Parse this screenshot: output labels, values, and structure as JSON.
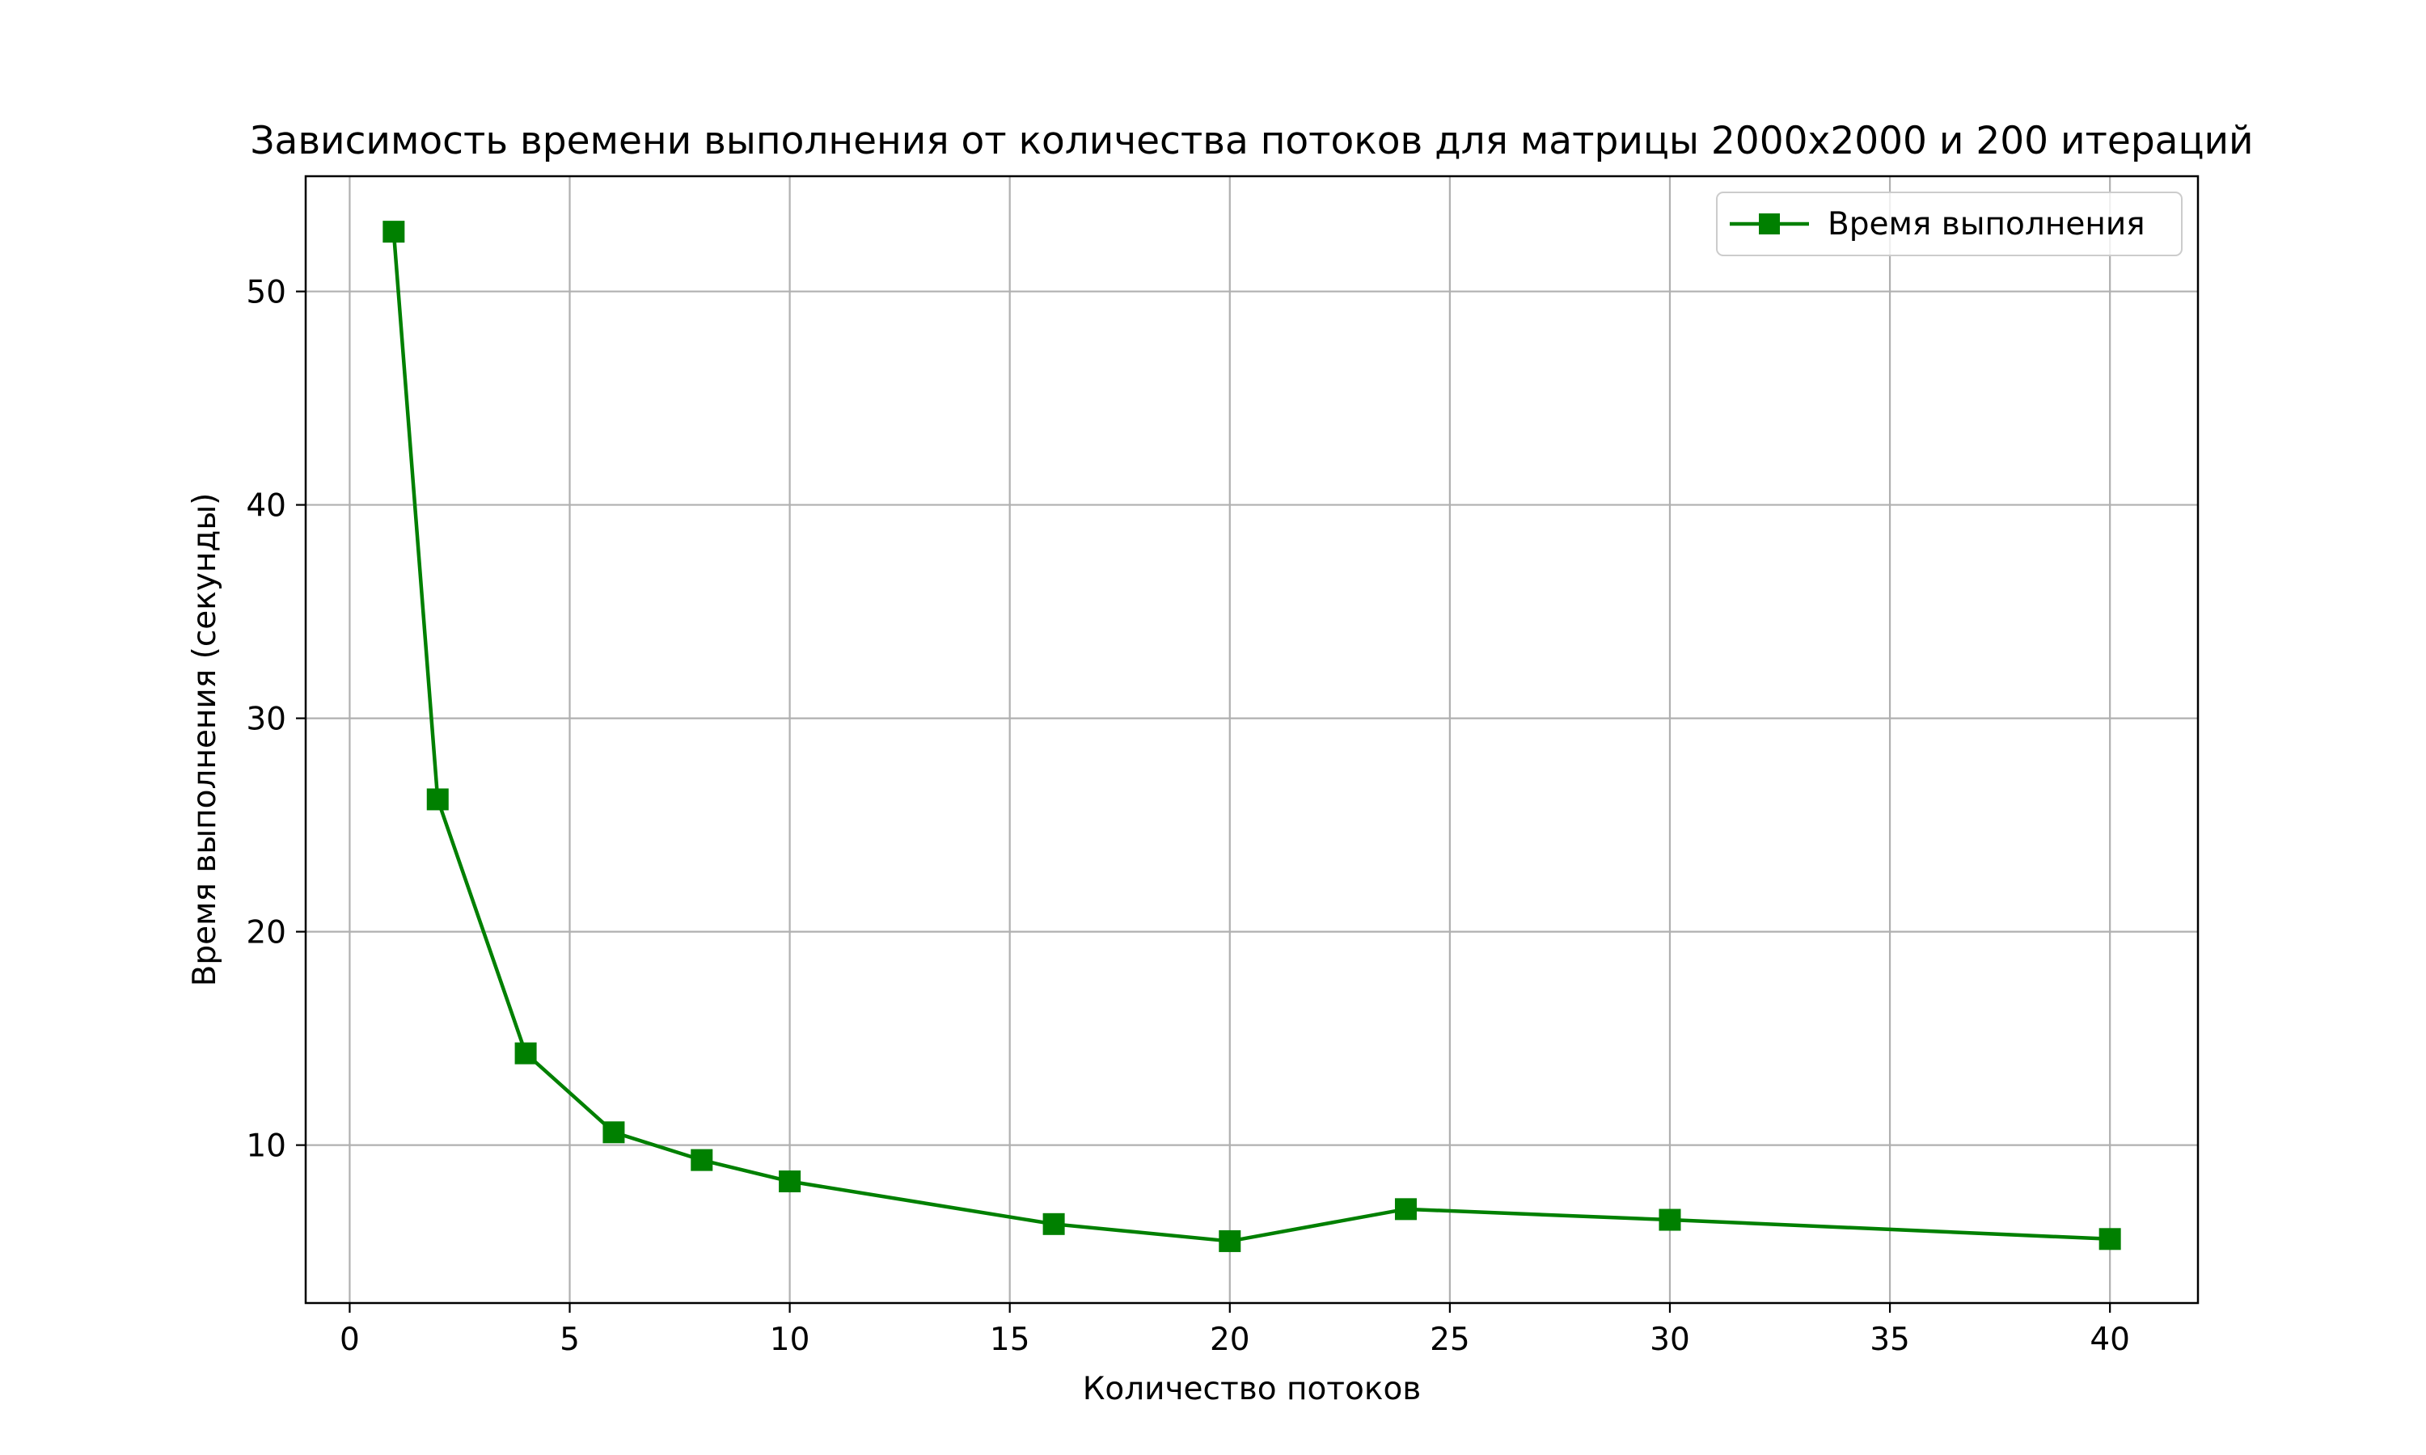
{
  "chart_data": {
    "type": "line",
    "title": "Зависимость времени выполнения от количества потоков для матрицы 2000x2000 и 200 итераций",
    "xlabel": "Количество потоков",
    "ylabel": "Время выполнения (секунды)",
    "xlim": [
      -1,
      42
    ],
    "ylim": [
      2.6,
      55.4
    ],
    "xticks": [
      0,
      5,
      10,
      15,
      20,
      25,
      30,
      35,
      40
    ],
    "yticks": [
      10,
      20,
      30,
      40,
      50
    ],
    "grid": true,
    "legend_position": "top-right",
    "series": [
      {
        "name": "Время выполнения",
        "color": "#008000",
        "marker": "square",
        "x": [
          1,
          2,
          4,
          6,
          8,
          10,
          16,
          20,
          24,
          30,
          40
        ],
        "y": [
          52.8,
          26.2,
          14.3,
          10.6,
          9.3,
          8.3,
          6.3,
          5.5,
          7.0,
          6.5,
          5.6
        ]
      }
    ]
  }
}
